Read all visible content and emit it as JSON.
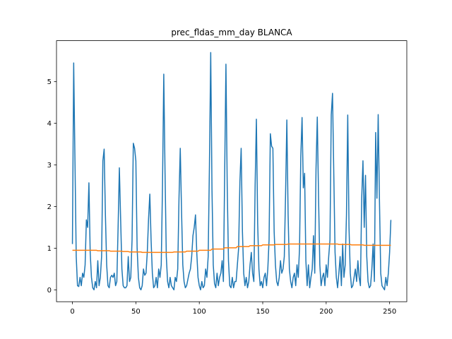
{
  "chart_data": {
    "type": "line",
    "title": "prec_fldas_mm_day BLANCA",
    "x": [
      0,
      1,
      2,
      3,
      4,
      5,
      6,
      7,
      8,
      9,
      10,
      11,
      12,
      13,
      14,
      15,
      16,
      17,
      18,
      19,
      20,
      21,
      22,
      23,
      24,
      25,
      26,
      27,
      28,
      29,
      30,
      31,
      32,
      33,
      34,
      35,
      36,
      37,
      38,
      39,
      40,
      41,
      42,
      43,
      44,
      45,
      46,
      47,
      48,
      49,
      50,
      51,
      52,
      53,
      54,
      55,
      56,
      57,
      58,
      59,
      60,
      61,
      62,
      63,
      64,
      65,
      66,
      67,
      68,
      69,
      70,
      71,
      72,
      73,
      74,
      75,
      76,
      77,
      78,
      79,
      80,
      81,
      82,
      83,
      84,
      85,
      86,
      87,
      88,
      89,
      90,
      91,
      92,
      93,
      94,
      95,
      96,
      97,
      98,
      99,
      100,
      101,
      102,
      103,
      104,
      105,
      106,
      107,
      108,
      109,
      110,
      111,
      112,
      113,
      114,
      115,
      116,
      117,
      118,
      119,
      120,
      121,
      122,
      123,
      124,
      125,
      126,
      127,
      128,
      129,
      130,
      131,
      132,
      133,
      134,
      135,
      136,
      137,
      138,
      139,
      140,
      141,
      142,
      143,
      144,
      145,
      146,
      147,
      148,
      149,
      150,
      151,
      152,
      153,
      154,
      155,
      156,
      157,
      158,
      159,
      160,
      161,
      162,
      163,
      164,
      165,
      166,
      167,
      168,
      169,
      170,
      171,
      172,
      173,
      174,
      175,
      176,
      177,
      178,
      179,
      180,
      181,
      182,
      183,
      184,
      185,
      186,
      187,
      188,
      189,
      190,
      191,
      192,
      193,
      194,
      195,
      196,
      197,
      198,
      199,
      200,
      201,
      202,
      203,
      204,
      205,
      206,
      207,
      208,
      209,
      210,
      211,
      212,
      213,
      214,
      215,
      216,
      217,
      218,
      219,
      220,
      221,
      222,
      223,
      224,
      225,
      226,
      227,
      228,
      229,
      230,
      231,
      232,
      233,
      234,
      235,
      236,
      237,
      238,
      239,
      240,
      241,
      242,
      243,
      244,
      245,
      246,
      247,
      248,
      249,
      250,
      251
    ],
    "series": [
      {
        "color": "#1f77b4",
        "values": [
          1.1,
          5.45,
          3.1,
          0.8,
          0.1,
          0.08,
          0.3,
          0.1,
          0.4,
          0.3,
          0.6,
          1.68,
          1.5,
          2.57,
          0.9,
          0.3,
          0.05,
          0.0,
          0.2,
          0.05,
          0.7,
          0.1,
          0.3,
          0.8,
          3.1,
          3.38,
          1.8,
          0.6,
          0.1,
          0.05,
          0.3,
          0.35,
          0.3,
          0.4,
          0.1,
          0.2,
          1.5,
          2.93,
          1.7,
          0.5,
          0.1,
          0.05,
          0.05,
          0.1,
          0.8,
          0.2,
          0.3,
          1.2,
          3.52,
          3.4,
          3.1,
          1.0,
          0.3,
          0.05,
          0.0,
          0.1,
          0.5,
          0.35,
          0.4,
          0.9,
          1.7,
          2.3,
          1.2,
          0.4,
          0.05,
          0.1,
          0.3,
          0.05,
          0.5,
          0.3,
          0.6,
          2.5,
          5.18,
          2.8,
          0.8,
          0.2,
          0.05,
          0.3,
          0.1,
          0.05,
          0.0,
          0.3,
          0.2,
          0.5,
          2.2,
          3.4,
          1.9,
          0.6,
          0.2,
          0.05,
          0.1,
          0.25,
          0.4,
          0.5,
          0.8,
          1.3,
          1.5,
          1.8,
          0.9,
          0.3,
          0.1,
          0.0,
          0.2,
          0.05,
          0.1,
          0.5,
          0.3,
          0.8,
          3.0,
          5.7,
          2.4,
          0.6,
          0.15,
          0.05,
          0.4,
          0.1,
          0.3,
          0.4,
          0.7,
          0.2,
          2.8,
          5.42,
          2.5,
          0.7,
          0.1,
          0.05,
          0.3,
          0.05,
          0.2,
          0.2,
          0.6,
          1.0,
          2.6,
          3.4,
          1.4,
          0.4,
          0.1,
          0.3,
          0.05,
          0.2,
          0.6,
          0.9,
          0.4,
          0.2,
          2.5,
          4.1,
          1.6,
          0.5,
          0.1,
          0.2,
          0.05,
          0.3,
          0.4,
          0.1,
          0.5,
          1.2,
          3.75,
          3.45,
          3.4,
          1.4,
          0.6,
          0.2,
          0.1,
          0.3,
          0.7,
          0.4,
          0.5,
          0.8,
          2.3,
          4.08,
          1.8,
          0.5,
          0.2,
          0.05,
          0.3,
          0.4,
          0.1,
          0.6,
          0.3,
          1.0,
          3.2,
          4.14,
          2.45,
          2.8,
          0.7,
          0.1,
          0.6,
          0.05,
          0.3,
          0.5,
          1.3,
          0.4,
          2.9,
          4.15,
          2.2,
          0.6,
          0.1,
          0.3,
          0.4,
          0.1,
          0.6,
          0.3,
          0.8,
          1.2,
          4.2,
          4.72,
          2.8,
          0.9,
          0.3,
          0.05,
          0.4,
          0.8,
          0.1,
          1.1,
          0.3,
          0.6,
          1.8,
          4.2,
          1.5,
          0.4,
          0.05,
          0.1,
          0.3,
          0.5,
          0.2,
          0.7,
          0.3,
          0.1,
          2.2,
          3.1,
          1.5,
          2.75,
          0.8,
          0.2,
          0.05,
          0.1,
          0.5,
          1.1,
          0.2,
          3.78,
          2.2,
          4.21,
          2.15,
          0.4,
          0.1,
          0.05,
          0.0,
          0.3,
          0.1,
          0.4,
          0.9,
          1.68
        ]
      },
      {
        "color": "#ff7f0e",
        "values": [
          0.95,
          0.95,
          0.95,
          0.95,
          0.95,
          0.95,
          0.95,
          0.95,
          0.95,
          0.95,
          0.95,
          0.95,
          0.95,
          0.95,
          0.95,
          0.95,
          0.95,
          0.95,
          0.95,
          0.95,
          0.94,
          0.94,
          0.94,
          0.94,
          0.94,
          0.94,
          0.94,
          0.94,
          0.94,
          0.94,
          0.93,
          0.93,
          0.93,
          0.93,
          0.93,
          0.93,
          0.93,
          0.93,
          0.93,
          0.93,
          0.92,
          0.92,
          0.92,
          0.92,
          0.92,
          0.91,
          0.91,
          0.91,
          0.91,
          0.91,
          0.91,
          0.91,
          0.91,
          0.91,
          0.91,
          0.9,
          0.9,
          0.9,
          0.9,
          0.9,
          0.9,
          0.9,
          0.9,
          0.9,
          0.9,
          0.9,
          0.9,
          0.9,
          0.9,
          0.9,
          0.9,
          0.9,
          0.9,
          0.9,
          0.9,
          0.9,
          0.9,
          0.9,
          0.9,
          0.9,
          0.91,
          0.91,
          0.91,
          0.91,
          0.91,
          0.91,
          0.91,
          0.91,
          0.91,
          0.91,
          0.93,
          0.93,
          0.93,
          0.93,
          0.93,
          0.93,
          0.93,
          0.93,
          0.93,
          0.93,
          0.95,
          0.95,
          0.95,
          0.95,
          0.95,
          0.95,
          0.95,
          0.95,
          0.95,
          0.95,
          0.98,
          0.98,
          0.98,
          0.98,
          0.98,
          0.98,
          0.98,
          0.98,
          0.98,
          0.98,
          1.01,
          1.01,
          1.01,
          1.01,
          1.01,
          1.01,
          1.01,
          1.01,
          1.01,
          1.01,
          1.04,
          1.04,
          1.04,
          1.04,
          1.04,
          1.04,
          1.04,
          1.04,
          1.04,
          1.04,
          1.06,
          1.06,
          1.06,
          1.06,
          1.06,
          1.06,
          1.06,
          1.06,
          1.06,
          1.06,
          1.08,
          1.08,
          1.08,
          1.08,
          1.08,
          1.08,
          1.08,
          1.08,
          1.08,
          1.08,
          1.09,
          1.09,
          1.09,
          1.09,
          1.09,
          1.09,
          1.09,
          1.09,
          1.09,
          1.09,
          1.1,
          1.1,
          1.1,
          1.1,
          1.1,
          1.1,
          1.1,
          1.1,
          1.1,
          1.1,
          1.1,
          1.1,
          1.1,
          1.1,
          1.1,
          1.1,
          1.1,
          1.1,
          1.1,
          1.1,
          1.1,
          1.1,
          1.1,
          1.1,
          1.1,
          1.1,
          1.1,
          1.1,
          1.1,
          1.1,
          1.1,
          1.1,
          1.1,
          1.1,
          1.1,
          1.1,
          1.1,
          1.1,
          1.1,
          1.1,
          1.09,
          1.09,
          1.09,
          1.09,
          1.09,
          1.09,
          1.09,
          1.09,
          1.09,
          1.09,
          1.08,
          1.08,
          1.08,
          1.08,
          1.08,
          1.08,
          1.08,
          1.08,
          1.08,
          1.08,
          1.07,
          1.07,
          1.07,
          1.07,
          1.07,
          1.07,
          1.07,
          1.07,
          1.07,
          1.07,
          1.07,
          1.07,
          1.07,
          1.07,
          1.07,
          1.07,
          1.07,
          1.07,
          1.07,
          1.07,
          1.07,
          1.07
        ]
      }
    ],
    "xlim": [
      -12.55,
      263.55
    ],
    "xticks": [
      0,
      50,
      100,
      150,
      200,
      250
    ],
    "ylim": [
      -0.285,
      5.985
    ],
    "yticks": [
      0,
      1,
      2,
      3,
      4,
      5
    ]
  }
}
